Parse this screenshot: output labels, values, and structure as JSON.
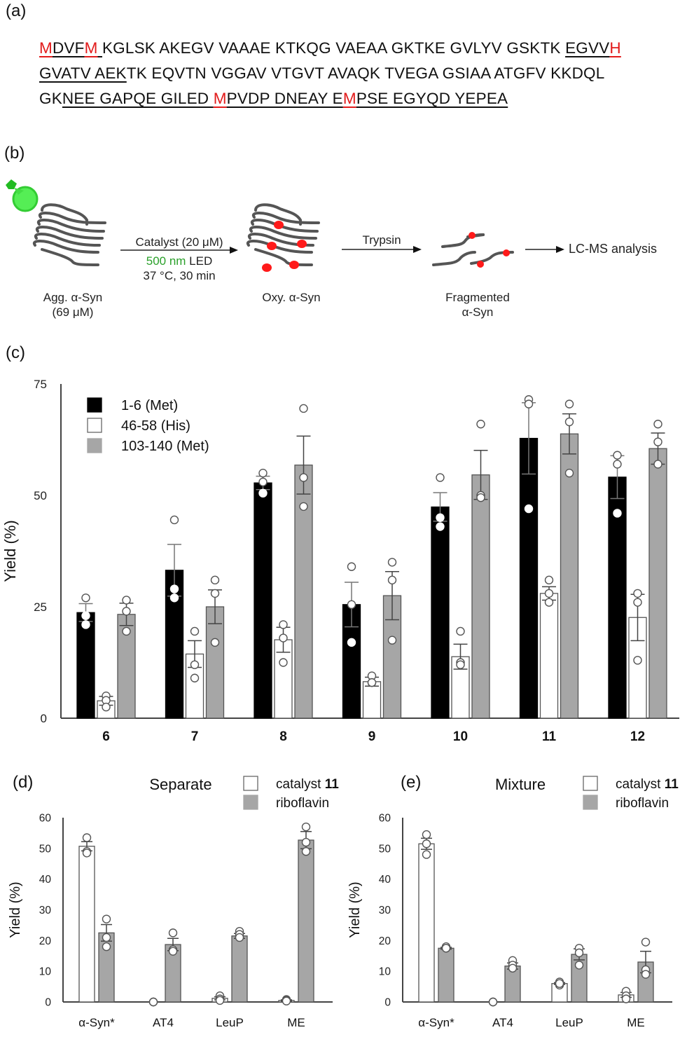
{
  "panel_a": {
    "label": "(a)",
    "lines": [
      [
        {
          "t": "M",
          "red": true,
          "ul": true
        },
        {
          "t": "DVF",
          "ul": true
        },
        {
          "t": "M",
          "red": true,
          "ul": true
        },
        {
          "t": " ",
          "ul": true
        },
        {
          "t": "KGLSK AKEGV VAAAE KTKQG VAEAA GKTKE GVLYV GSKTK "
        },
        {
          "t": "EGVV",
          "ul": true
        },
        {
          "t": "H",
          "red": true,
          "ul": true
        }
      ],
      [
        {
          "t": "GVATV AEK",
          "ul": true
        },
        {
          "t": "TK EQVTN VGGAV VTGVT AVAQK TVEGA GSIAA ATGFV KKDQL"
        }
      ],
      [
        {
          "t": "GK"
        },
        {
          "t": "NEE GAPQE GILED ",
          "ul": true
        },
        {
          "t": "M",
          "red": true,
          "ul": true
        },
        {
          "t": "PVDP DNEAY E",
          "ul": true
        },
        {
          "t": "M",
          "red": true,
          "ul": true
        },
        {
          "t": "PSE EGYQD YEPEA",
          "ul": true
        }
      ]
    ]
  },
  "panel_b": {
    "label": "(b)",
    "start_label_1": "Agg. α-Syn",
    "start_label_2": "(69 μM)",
    "arrow1_top": "Catalyst (20 μM)",
    "arrow1_led_green": "500 nm",
    "arrow1_led_rest": " LED",
    "arrow1_cond": "37 °C, 30 min",
    "oxy_label": "Oxy. α-Syn",
    "arrow2_top": "Trypsin",
    "frag_label_1": "Fragmented",
    "frag_label_2": "α-Syn",
    "final_label": "LC-MS analysis",
    "colors": {
      "led": "#3ddc3d",
      "mark": "#ff1a1a",
      "fiber": "#555555"
    }
  },
  "panel_c_label": "(c)",
  "panel_d_label": "(d)",
  "panel_e_label": "(e)",
  "chart_data": [
    {
      "id": "c",
      "type": "bar",
      "title": "",
      "xlabel": "",
      "ylabel": "Yield (%)",
      "ylim": [
        0,
        75
      ],
      "yticks": [
        0,
        25,
        50,
        75
      ],
      "grid": false,
      "legend_position": "top-left",
      "categories": [
        "6",
        "7",
        "8",
        "9",
        "10",
        "11",
        "12"
      ],
      "series": [
        {
          "name": "1-6 (Met)",
          "fill": "#000000",
          "values": [
            23.7,
            33.2,
            52.8,
            25.5,
            47.4,
            62.8,
            54.1
          ],
          "errors": [
            2.0,
            5.8,
            1.5,
            5.0,
            3.2,
            8.0,
            4.8
          ],
          "points": [
            [
              27,
              23,
              21
            ],
            [
              44.5,
              29,
              27
            ],
            [
              55,
              53,
              50.5
            ],
            [
              34,
              25.5,
              17
            ],
            [
              54,
              45,
              43
            ],
            [
              71.5,
              70.5,
              47
            ],
            [
              59,
              57,
              46
            ]
          ]
        },
        {
          "name": "46-58 (His)",
          "fill": "#ffffff",
          "values": [
            3.9,
            14.4,
            17.6,
            8.2,
            13.8,
            28.0,
            22.6
          ],
          "errors": [
            1.0,
            3.0,
            2.8,
            1.0,
            2.8,
            1.5,
            5.2
          ],
          "points": [
            [
              5,
              4,
              2.5
            ],
            [
              19.5,
              12,
              9
            ],
            [
              21,
              18,
              12.5
            ],
            [
              9.5,
              8,
              8
            ],
            [
              19.5,
              12.5,
              12
            ],
            [
              31,
              28,
              26
            ],
            [
              28,
              26,
              13
            ]
          ]
        },
        {
          "name": "103-140 (Met)",
          "fill": "#a6a6a6",
          "values": [
            23.3,
            25.0,
            56.8,
            27.5,
            54.6,
            63.8,
            60.5
          ],
          "errors": [
            2.5,
            3.8,
            6.5,
            5.4,
            5.5,
            4.5,
            3.5
          ],
          "points": [
            [
              26.5,
              24,
              19.5
            ],
            [
              31,
              28,
              17
            ],
            [
              69.5,
              54,
              47.5
            ],
            [
              35,
              31,
              17.5
            ],
            [
              66,
              50,
              49.5
            ],
            [
              70.5,
              66.5,
              55
            ],
            [
              66,
              62,
              57
            ]
          ]
        }
      ]
    },
    {
      "id": "d",
      "type": "bar",
      "title": "Separate",
      "xlabel": "",
      "ylabel": "Yield (%)",
      "ylim": [
        0,
        60
      ],
      "yticks": [
        0,
        10,
        20,
        30,
        40,
        50,
        60
      ],
      "grid": false,
      "legend_position": "top-right",
      "categories": [
        "α-Syn*",
        "AT4",
        "LeuP",
        "ME"
      ],
      "series": [
        {
          "name": "catalyst 11",
          "name_plain": "catalyst ",
          "name_bold": "11",
          "fill": "#ffffff",
          "values": [
            50.7,
            0,
            1.2,
            0.5
          ],
          "errors": [
            1.5,
            0,
            0.5,
            0.2
          ],
          "points": [
            [
              53.5,
              49,
              48.5
            ],
            [
              0,
              0,
              0
            ],
            [
              2,
              1,
              0.5
            ],
            [
              0.8,
              0.5,
              0.3
            ]
          ]
        },
        {
          "name": "riboflavin",
          "name_plain": "riboflavin",
          "name_bold": "",
          "fill": "#a6a6a6",
          "values": [
            22.5,
            18.7,
            21.5,
            52.7
          ],
          "errors": [
            2.7,
            2.0,
            0.8,
            2.8
          ],
          "points": [
            [
              27,
              21,
              18
            ],
            [
              22.5,
              17,
              16.5
            ],
            [
              23,
              22,
              21
            ],
            [
              57,
              52,
              49
            ]
          ]
        }
      ]
    },
    {
      "id": "e",
      "type": "bar",
      "title": "Mixture",
      "xlabel": "",
      "ylabel": "Yield (%)",
      "ylim": [
        0,
        60
      ],
      "yticks": [
        0,
        10,
        20,
        30,
        40,
        50,
        60
      ],
      "grid": false,
      "legend_position": "top-right",
      "categories": [
        "α-Syn*",
        "AT4",
        "LeuP",
        "ME"
      ],
      "series": [
        {
          "name": "catalyst 11",
          "name_plain": "catalyst ",
          "name_bold": "11",
          "fill": "#ffffff",
          "values": [
            51.5,
            0,
            6.0,
            2.3
          ],
          "errors": [
            1.8,
            0,
            0.3,
            0.8
          ],
          "points": [
            [
              54.5,
              51.5,
              48
            ],
            [
              0,
              0,
              0
            ],
            [
              6.5,
              5.5,
              6
            ],
            [
              3.5,
              2,
              1
            ]
          ]
        },
        {
          "name": "riboflavin",
          "name_plain": "riboflavin",
          "name_bold": "",
          "fill": "#a6a6a6",
          "values": [
            17.5,
            11.7,
            15.5,
            13.0
          ],
          "errors": [
            0.3,
            1.0,
            1.8,
            3.5
          ],
          "points": [
            [
              18,
              17.5,
              17.5
            ],
            [
              13.5,
              12,
              11
            ],
            [
              17.5,
              16,
              12
            ],
            [
              19.5,
              10.5,
              9
            ]
          ]
        }
      ]
    }
  ]
}
